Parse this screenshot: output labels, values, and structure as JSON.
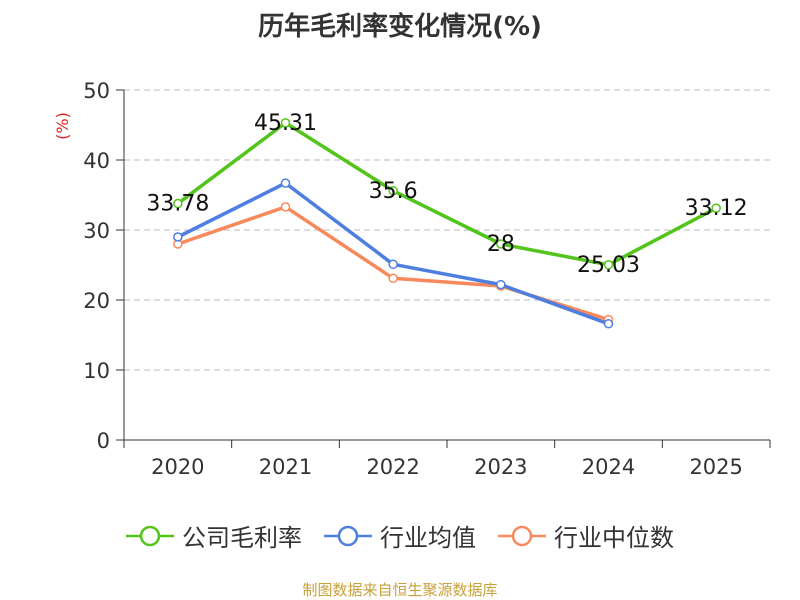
{
  "chart_data": {
    "type": "line",
    "title": "历年毛利率变化情况(%)",
    "ylabel": "(%)",
    "xlabel": "",
    "categories": [
      "2020",
      "2021",
      "2022",
      "2023",
      "2024",
      "2025"
    ],
    "ylim": [
      0,
      50
    ],
    "yticks": [
      0,
      10,
      20,
      30,
      40,
      50
    ],
    "grid": true,
    "legend_position": "bottom",
    "series": [
      {
        "name": "公司毛利率",
        "color": "#52c41a",
        "values": [
          33.78,
          45.31,
          35.6,
          28,
          25.03,
          33.12
        ],
        "labels": [
          "33.78",
          "45.31",
          "35.6",
          "28",
          "25.03",
          "33.12"
        ]
      },
      {
        "name": "行业均值",
        "color": "#4e7fe0",
        "values": [
          29,
          36.7,
          25.1,
          22.2,
          16.6,
          null
        ]
      },
      {
        "name": "行业中位数",
        "color": "#f7895c",
        "values": [
          28,
          33.3,
          23.1,
          22,
          17.2,
          null
        ]
      }
    ]
  },
  "footer": {
    "source": "制图数据来自恒生聚源数据库"
  }
}
